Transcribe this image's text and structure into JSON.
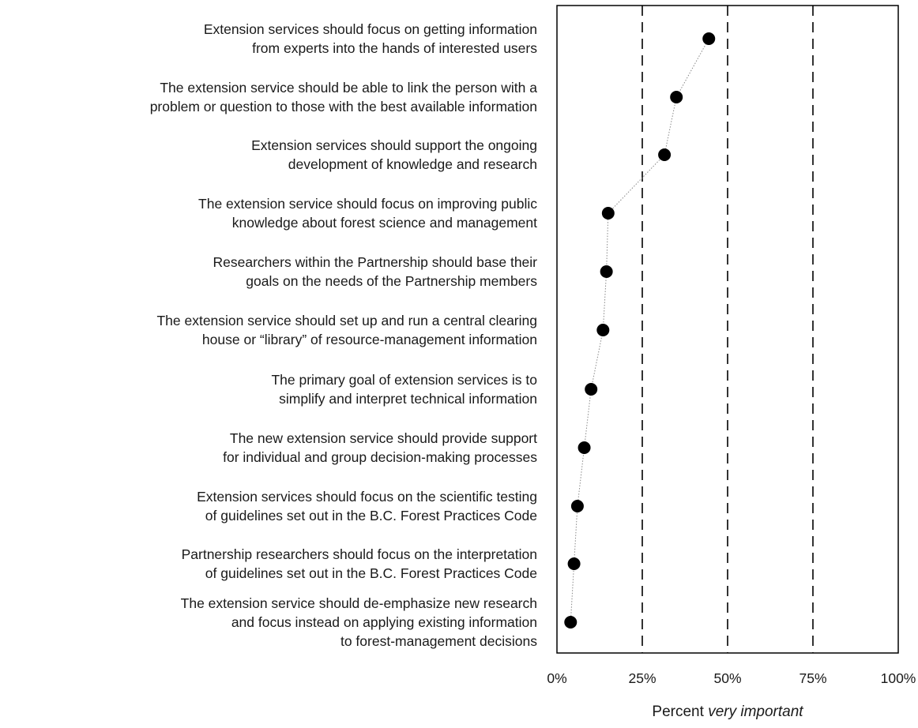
{
  "chart_data": {
    "type": "scatter",
    "categories": [
      [
        "Extension services should focus on getting information",
        "from experts into the hands of interested users"
      ],
      [
        "The extension service should be able to link the person with a",
        "problem or question to those with the best available information"
      ],
      [
        "Extension services should support the ongoing",
        "development of knowledge and research"
      ],
      [
        "The extension service should focus on improving public",
        "knowledge about forest science and management"
      ],
      [
        "Researchers within the Partnership should base their",
        "goals on the needs of the Partnership members"
      ],
      [
        "The extension service should set up and run a central clearing",
        "house or “library” of resource-management information"
      ],
      [
        "The primary goal of extension services is to",
        "simplify and interpret technical information"
      ],
      [
        "The new extension service should provide support",
        "for individual and group decision-making processes"
      ],
      [
        "Extension services should focus on the scientific testing",
        "of guidelines set out in the B.C. Forest Practices Code"
      ],
      [
        "Partnership researchers should focus on the interpretation",
        "of guidelines set out in the B.C. Forest Practices Code"
      ],
      [
        "The extension service should de-emphasize new research",
        "and focus instead on applying existing information",
        "to forest-management decisions"
      ]
    ],
    "values": [
      44.5,
      35,
      31.5,
      15,
      14.5,
      13.5,
      10,
      8,
      6,
      5,
      4
    ],
    "xticks": [
      "0%",
      "25%",
      "50%",
      "75%",
      "100%"
    ],
    "xtick_values": [
      0,
      25,
      50,
      75,
      100
    ],
    "xlim": [
      0,
      100
    ],
    "xlabel_prefix": "Percent ",
    "xlabel_emphasis": "very important",
    "reference_lines": [
      25,
      50,
      75
    ],
    "connected": true,
    "colors": {
      "marker": "#000000",
      "connector": "#888888",
      "frame": "#000000"
    }
  }
}
